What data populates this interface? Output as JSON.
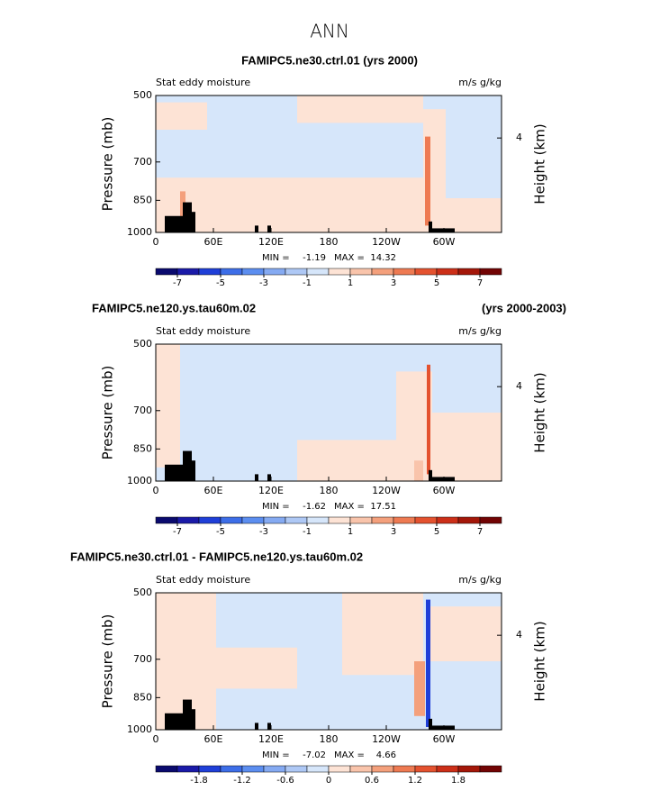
{
  "title": "ANN",
  "chart_data": [
    {
      "type": "contour",
      "title": "FAMIPC5.ne30.ctrl.01 (yrs 2000)",
      "left_label": "Stat eddy moisture",
      "right_label": "m/s g/kg",
      "ylabel": "Pressure (mb)",
      "y2label": "Height (km)",
      "log_y": true,
      "ylim": [
        1000,
        500
      ],
      "yticks": [
        500,
        700,
        850,
        1000
      ],
      "y2lim": [
        0,
        5.8
      ],
      "y2ticks": [
        4
      ],
      "xlim": [
        0,
        360
      ],
      "xticks": [
        0,
        {
          "value": 60,
          "label": "60E"
        },
        {
          "value": 120,
          "label": "120E"
        },
        180,
        {
          "value": 240,
          "label": "120W"
        },
        {
          "value": 300,
          "label": "60W"
        }
      ],
      "min_label": "MIN =",
      "min": -1.19,
      "max_label": "MAX =",
      "max": 14.32,
      "colorbar": {
        "lim": [
          -8,
          8
        ],
        "ticks": [
          -7,
          -5,
          -3,
          -1,
          1,
          3,
          5,
          7
        ],
        "colors": [
          "#0a0a6e",
          "#1a1aa8",
          "#1f3fd8",
          "#3d6ee8",
          "#5c8ef0",
          "#85aaf2",
          "#aec8f5",
          "#d6e6fa",
          "#fde3d5",
          "#f9c4ab",
          "#f4a07c",
          "#ee7a52",
          "#e4522f",
          "#cc2f18",
          "#a41709",
          "#720404"
        ]
      }
    },
    {
      "type": "contour",
      "title": "FAMIPC5.ne120.ys.tau60m.02",
      "subtitle": "(yrs 2000-2003)",
      "left_label": "Stat eddy moisture",
      "right_label": "m/s g/kg",
      "ylabel": "Pressure (mb)",
      "y2label": "Height (km)",
      "log_y": true,
      "ylim": [
        1000,
        500
      ],
      "yticks": [
        500,
        700,
        850,
        1000
      ],
      "y2lim": [
        0,
        5.8
      ],
      "y2ticks": [
        4
      ],
      "xlim": [
        0,
        360
      ],
      "xticks": [
        0,
        {
          "value": 60,
          "label": "60E"
        },
        {
          "value": 120,
          "label": "120E"
        },
        180,
        {
          "value": 240,
          "label": "120W"
        },
        {
          "value": 300,
          "label": "60W"
        }
      ],
      "min_label": "MIN =",
      "min": -1.62,
      "max_label": "MAX =",
      "max": 17.51,
      "colorbar": {
        "lim": [
          -8,
          8
        ],
        "ticks": [
          -7,
          -5,
          -3,
          -1,
          1,
          3,
          5,
          7
        ],
        "colors": [
          "#0a0a6e",
          "#1a1aa8",
          "#1f3fd8",
          "#3d6ee8",
          "#5c8ef0",
          "#85aaf2",
          "#aec8f5",
          "#d6e6fa",
          "#fde3d5",
          "#f9c4ab",
          "#f4a07c",
          "#ee7a52",
          "#e4522f",
          "#cc2f18",
          "#a41709",
          "#720404"
        ]
      }
    },
    {
      "type": "contour",
      "title": "FAMIPC5.ne30.ctrl.01 - FAMIPC5.ne120.ys.tau60m.02",
      "left_label": "Stat eddy moisture",
      "right_label": "m/s g/kg",
      "ylabel": "Pressure (mb)",
      "y2label": "Height (km)",
      "log_y": true,
      "ylim": [
        1000,
        500
      ],
      "yticks": [
        500,
        700,
        850,
        1000
      ],
      "y2lim": [
        0,
        5.8
      ],
      "y2ticks": [
        4
      ],
      "xlim": [
        0,
        360
      ],
      "xticks": [
        0,
        {
          "value": 60,
          "label": "60E"
        },
        {
          "value": 120,
          "label": "120E"
        },
        180,
        {
          "value": 240,
          "label": "120W"
        },
        {
          "value": 300,
          "label": "60W"
        }
      ],
      "min_label": "MIN =",
      "min": -7.02,
      "max_label": "MAX =",
      "max": 4.66,
      "colorbar": {
        "lim": [
          -2.4,
          2.4
        ],
        "ticks": [
          -1.8,
          -1.2,
          -0.6,
          0,
          0.6,
          1.2,
          1.8
        ],
        "colors": [
          "#0a0a6e",
          "#1a1aa8",
          "#1f3fd8",
          "#3d6ee8",
          "#5c8ef0",
          "#85aaf2",
          "#aec8f5",
          "#d6e6fa",
          "#fde3d5",
          "#f9c4ab",
          "#f4a07c",
          "#ee7a52",
          "#e4522f",
          "#cc2f18",
          "#a41709",
          "#720404"
        ]
      }
    }
  ]
}
